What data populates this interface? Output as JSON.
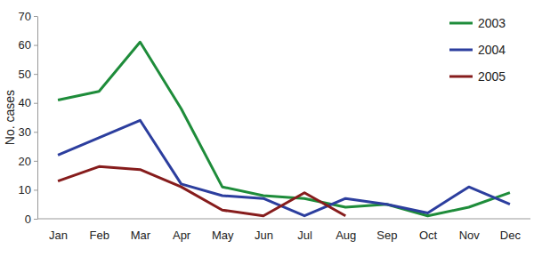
{
  "chart_data": {
    "type": "line",
    "y_label": "No. cases",
    "categories": [
      "Jan",
      "Feb",
      "Mar",
      "Apr",
      "May",
      "Jun",
      "Jul",
      "Aug",
      "Sep",
      "Oct",
      "Nov",
      "Dec"
    ],
    "series": [
      {
        "name": "2003",
        "color": "#1e8c3a",
        "values": [
          41,
          44,
          61,
          38,
          11,
          8,
          7,
          4,
          5,
          1,
          4,
          9
        ]
      },
      {
        "name": "2004",
        "color": "#2c3e9e",
        "values": [
          22,
          28,
          34,
          12,
          8,
          7,
          1,
          7,
          5,
          2,
          11,
          5
        ]
      },
      {
        "name": "2005",
        "color": "#861c1c",
        "values": [
          13,
          18,
          17,
          11,
          3,
          1,
          9,
          1,
          null,
          null,
          null,
          null
        ]
      }
    ],
    "ylim": [
      0,
      70
    ],
    "yticks": [
      0,
      10,
      20,
      30,
      40,
      50,
      60,
      70
    ],
    "grid": false,
    "legend": "top-right"
  }
}
